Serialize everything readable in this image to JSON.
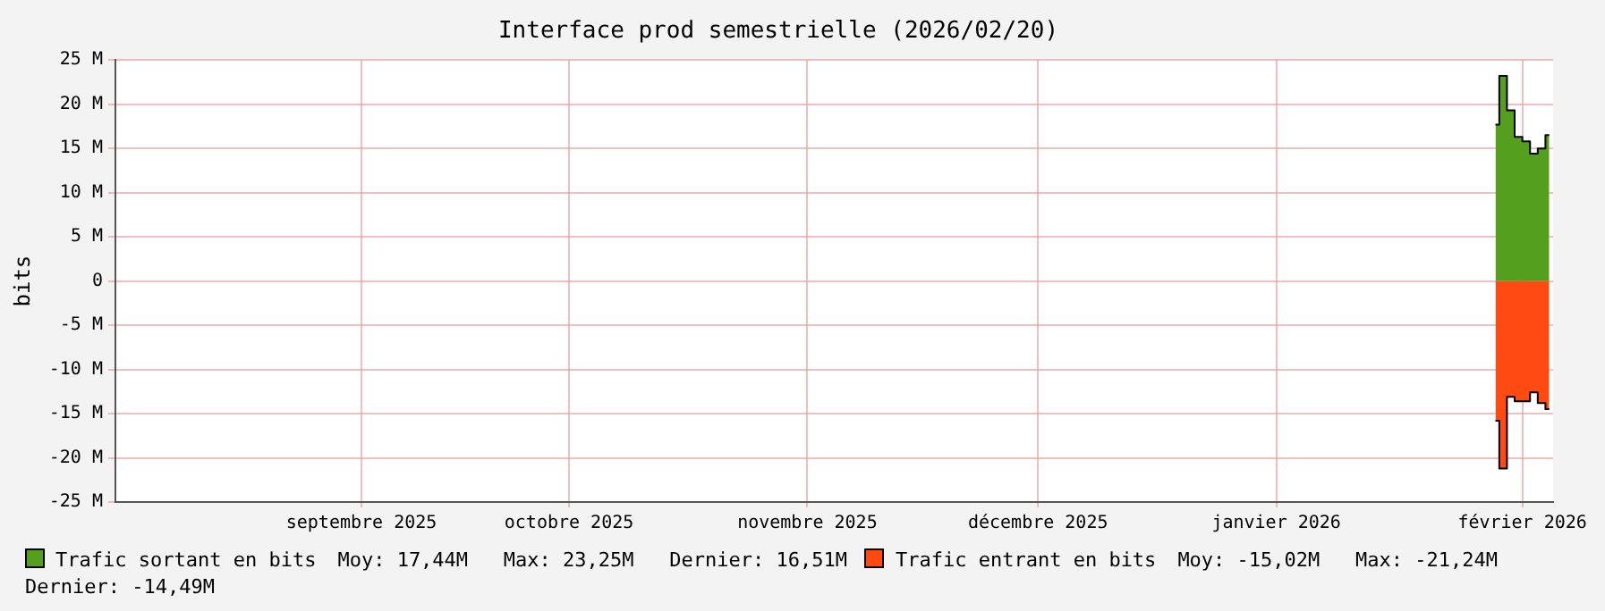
{
  "chart_data": {
    "type": "area",
    "title": "Interface prod semestrielle (2026/02/20)",
    "ylabel": "bits",
    "x": [
      "2026-02-13T12:00",
      "2026-02-14T12:00",
      "2026-02-15T12:00",
      "2026-02-16T12:00",
      "2026-02-17T12:00",
      "2026-02-18T12:00",
      "2026-02-19T12:00",
      "2026-02-20T12:00"
    ],
    "series": [
      {
        "name": "Trafic sortant en bits",
        "color": "#54a01e",
        "values": [
          17700000,
          23200000,
          19300000,
          16300000,
          15800000,
          14400000,
          15000000,
          16500000
        ]
      },
      {
        "name": "Trafic entrant en bits",
        "color": "#ff4a12",
        "values": [
          -15800000,
          -21200000,
          -13100000,
          -13600000,
          -13600000,
          -12600000,
          -13800000,
          -14500000
        ]
      }
    ],
    "annotations": [
      "Moy: 17,44M   Max: 23,25M   Dernier: 16,51M",
      "Moy: -15,02M   Max: -21,24M   Dernier: -14,49M"
    ],
    "xlim": [
      "2025-08-18",
      "2026-02-21"
    ],
    "xticks": [
      {
        "value": "2025-09-19",
        "label": "septembre 2025"
      },
      {
        "value": "2025-10-16",
        "label": "octobre 2025"
      },
      {
        "value": "2025-11-16",
        "label": "novembre 2025"
      },
      {
        "value": "2025-12-16",
        "label": "décembre 2025"
      },
      {
        "value": "2026-01-16",
        "label": "janvier 2026"
      },
      {
        "value": "2026-02-17",
        "label": "février 2026"
      }
    ],
    "ylim": [
      -25000000,
      25000000
    ],
    "yticks": [
      {
        "value": -25000000,
        "label": "-25 M"
      },
      {
        "value": -20000000,
        "label": "-20 M"
      },
      {
        "value": -15000000,
        "label": "-15 M"
      },
      {
        "value": -10000000,
        "label": "-10 M"
      },
      {
        "value": -5000000,
        "label": "-5 M"
      },
      0,
      {
        "value": 5000000,
        "label": "5 M"
      },
      {
        "value": 10000000,
        "label": "10 M"
      },
      {
        "value": 15000000,
        "label": "15 M"
      },
      {
        "value": 20000000,
        "label": "20 M"
      },
      {
        "value": 25000000,
        "label": "25 M"
      }
    ],
    "grid": true,
    "legend": "bottom"
  }
}
